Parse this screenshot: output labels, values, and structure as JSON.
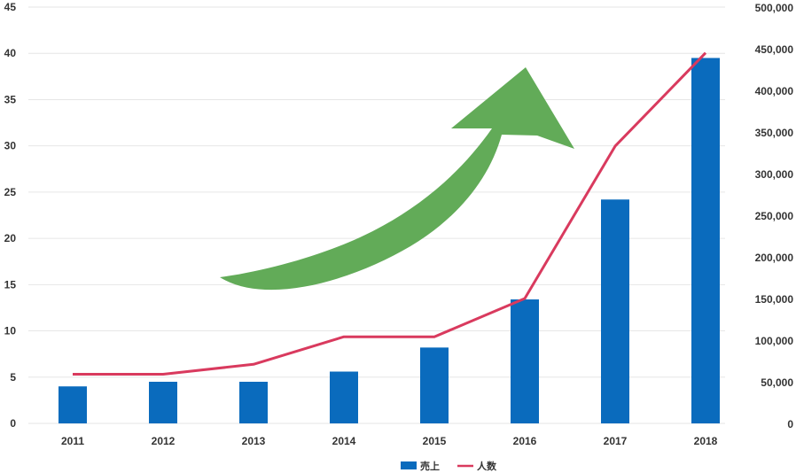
{
  "chart_data": {
    "type": "bar+line",
    "categories": [
      "2011",
      "2012",
      "2013",
      "2014",
      "2015",
      "2016",
      "2017",
      "2018"
    ],
    "series": [
      {
        "name": "売上",
        "type": "bar",
        "axis": "left",
        "color": "#0a6bbd",
        "values": [
          4.0,
          4.5,
          4.5,
          5.6,
          8.2,
          13.4,
          24.2,
          39.5
        ]
      },
      {
        "name": "人数",
        "type": "line",
        "axis": "right",
        "color": "#d93a5e",
        "values": [
          59000,
          59000,
          71000,
          104000,
          104000,
          150000,
          333000,
          445000
        ]
      }
    ],
    "y_left": {
      "ylim": [
        0,
        45
      ],
      "ticks": [
        "0",
        "5",
        "10",
        "15",
        "20",
        "25",
        "30",
        "35",
        "40",
        "45"
      ]
    },
    "y_right": {
      "ylim": [
        0,
        500000
      ],
      "ticks": [
        "0",
        "50,000",
        "100,000",
        "150,000",
        "200,000",
        "250,000",
        "300,000",
        "350,000",
        "400,000",
        "450,000",
        "500,000"
      ]
    },
    "grid": true,
    "legend_position": "bottom",
    "annotation": {
      "type": "arrow",
      "color": "#62ab58",
      "direction": "up-right"
    }
  }
}
